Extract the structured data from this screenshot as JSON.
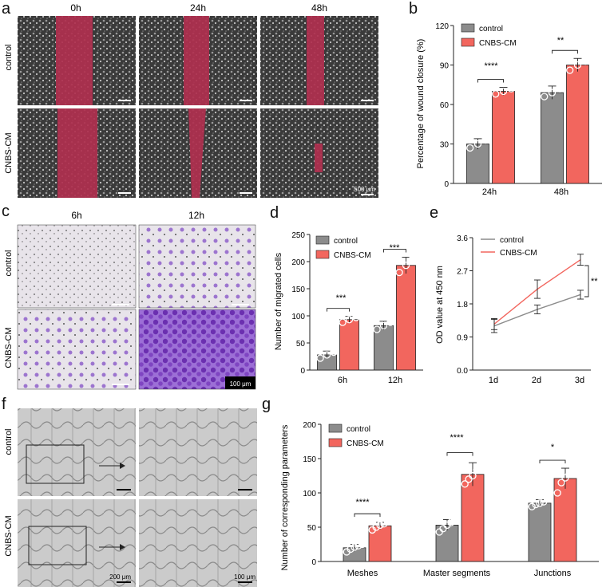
{
  "colors": {
    "control": "#8c8c8c",
    "cnbs": "#f2665e",
    "wound": "#b0304f",
    "crystal": "#7b3fb5",
    "micro_bg": "#2e2e2e",
    "tube_bg": "#c9c9c9"
  },
  "panel_letters": {
    "a": "a",
    "b": "b",
    "c": "c",
    "d": "d",
    "e": "e",
    "f": "f",
    "g": "g"
  },
  "panel_a": {
    "columns": [
      "0h",
      "24h",
      "48h"
    ],
    "rows": [
      "control",
      "CNBS-CM"
    ],
    "scale": "500 μm"
  },
  "panel_c": {
    "columns": [
      "6h",
      "12h"
    ],
    "rows": [
      "control",
      "CNBS-CM"
    ],
    "scale": "100 μm"
  },
  "panel_f": {
    "rows": [
      "control",
      "CNBS-CM"
    ],
    "scale_left": "200 μm",
    "scale_right": "100 μm"
  },
  "chart_data": [
    {
      "panel": "b",
      "type": "bar",
      "ylabel": "Percentage of wound closure (%)",
      "categories": [
        "24h",
        "48h"
      ],
      "yticks": [
        "0",
        "30",
        "60",
        "90",
        "120"
      ],
      "ylim": [
        0,
        120
      ],
      "series": [
        {
          "name": "control",
          "values": [
            30,
            69
          ],
          "errors": [
            4,
            5
          ],
          "points": [
            [
              27,
              30,
              33
            ],
            [
              66,
              69,
              72
            ]
          ]
        },
        {
          "name": "CNBS-CM",
          "values": [
            70,
            90
          ],
          "errors": [
            3,
            5
          ],
          "points": [
            [
              68,
              70,
              72
            ],
            [
              86,
              90,
              93
            ]
          ]
        }
      ],
      "significance": [
        "****",
        "**"
      ],
      "legend": "top-left"
    },
    {
      "panel": "d",
      "type": "bar",
      "ylabel": "Number of migrated cells",
      "categories": [
        "6h",
        "12h"
      ],
      "yticks": [
        "0",
        "50",
        "100",
        "150",
        "200",
        "250"
      ],
      "ylim": [
        0,
        250
      ],
      "series": [
        {
          "name": "control",
          "values": [
            28,
            82
          ],
          "errors": [
            7,
            8
          ],
          "points": [
            [
              22,
              28,
              33
            ],
            [
              75,
              82,
              88
            ]
          ]
        },
        {
          "name": "CNBS-CM",
          "values": [
            93,
            193
          ],
          "errors": [
            6,
            15
          ],
          "points": [
            [
              88,
              93,
              97
            ],
            [
              180,
              193,
              206
            ]
          ]
        }
      ],
      "significance": [
        "***",
        "***"
      ],
      "legend": "top-left"
    },
    {
      "panel": "e",
      "type": "line",
      "ylabel": "OD value at 450 nm",
      "x": [
        "1d",
        "2d",
        "3d"
      ],
      "yticks": [
        "0.0",
        "0.9",
        "1.8",
        "2.7",
        "3.6"
      ],
      "ylim": [
        0,
        3.6
      ],
      "series": [
        {
          "name": "control",
          "values": [
            1.2,
            1.65,
            2.05
          ],
          "errors": [
            0.18,
            0.12,
            0.12
          ]
        },
        {
          "name": "CNBS-CM",
          "values": [
            1.25,
            2.2,
            3.0
          ],
          "errors": [
            0.15,
            0.25,
            0.15
          ]
        }
      ],
      "significance": [
        "**"
      ],
      "legend": "top-left"
    },
    {
      "panel": "g",
      "type": "bar",
      "ylabel": "Number of corresponding parameters",
      "categories": [
        "Meshes",
        "Master segments",
        "Junctions"
      ],
      "yticks": [
        "0",
        "50",
        "100",
        "150",
        "200"
      ],
      "ylim": [
        0,
        200
      ],
      "series": [
        {
          "name": "control",
          "values": [
            20,
            53,
            85
          ],
          "errors": [
            5,
            8,
            5
          ],
          "points": [
            [
              14,
              18,
              21,
              23,
              25
            ],
            [
              43,
              48,
              53,
              57,
              60
            ],
            [
              80,
              83,
              85,
              87,
              92
            ]
          ]
        },
        {
          "name": "CNBS-CM",
          "values": [
            52,
            127,
            121
          ],
          "errors": [
            5,
            17,
            15
          ],
          "points": [
            [
              46,
              50,
              53,
              55,
              58
            ],
            [
              113,
              120,
              125,
              134,
              147
            ],
            [
              100,
              115,
              122,
              128,
              135
            ]
          ]
        }
      ],
      "significance": [
        "****",
        "****",
        "*"
      ],
      "legend": "top-left"
    }
  ]
}
